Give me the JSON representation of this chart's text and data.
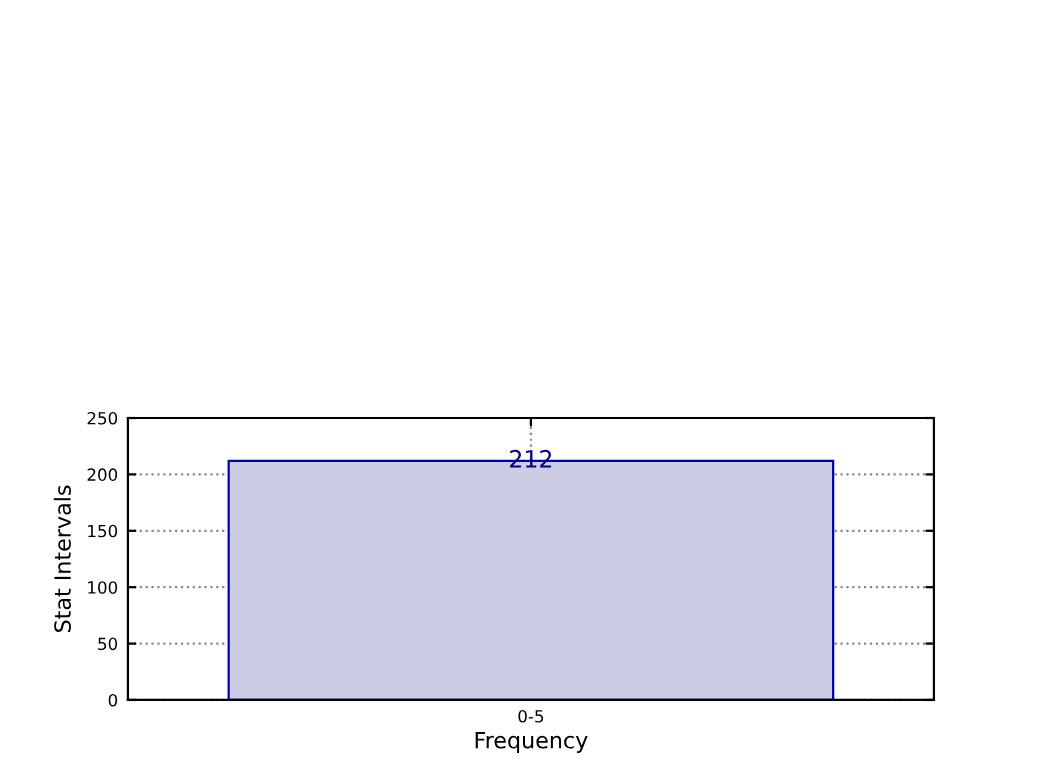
{
  "chart_data": {
    "type": "bar",
    "xlabel": "Frequency",
    "ylabel": "Stat Intervals",
    "categories": [
      "0-5"
    ],
    "series": [
      {
        "color": "#ccccE5",
        "values": [
          212
        ]
      }
    ],
    "data_labels": true,
    "ylim": [
      0,
      250
    ],
    "yticks": [
      0,
      50,
      100,
      150,
      200,
      250
    ],
    "grid": true
  }
}
